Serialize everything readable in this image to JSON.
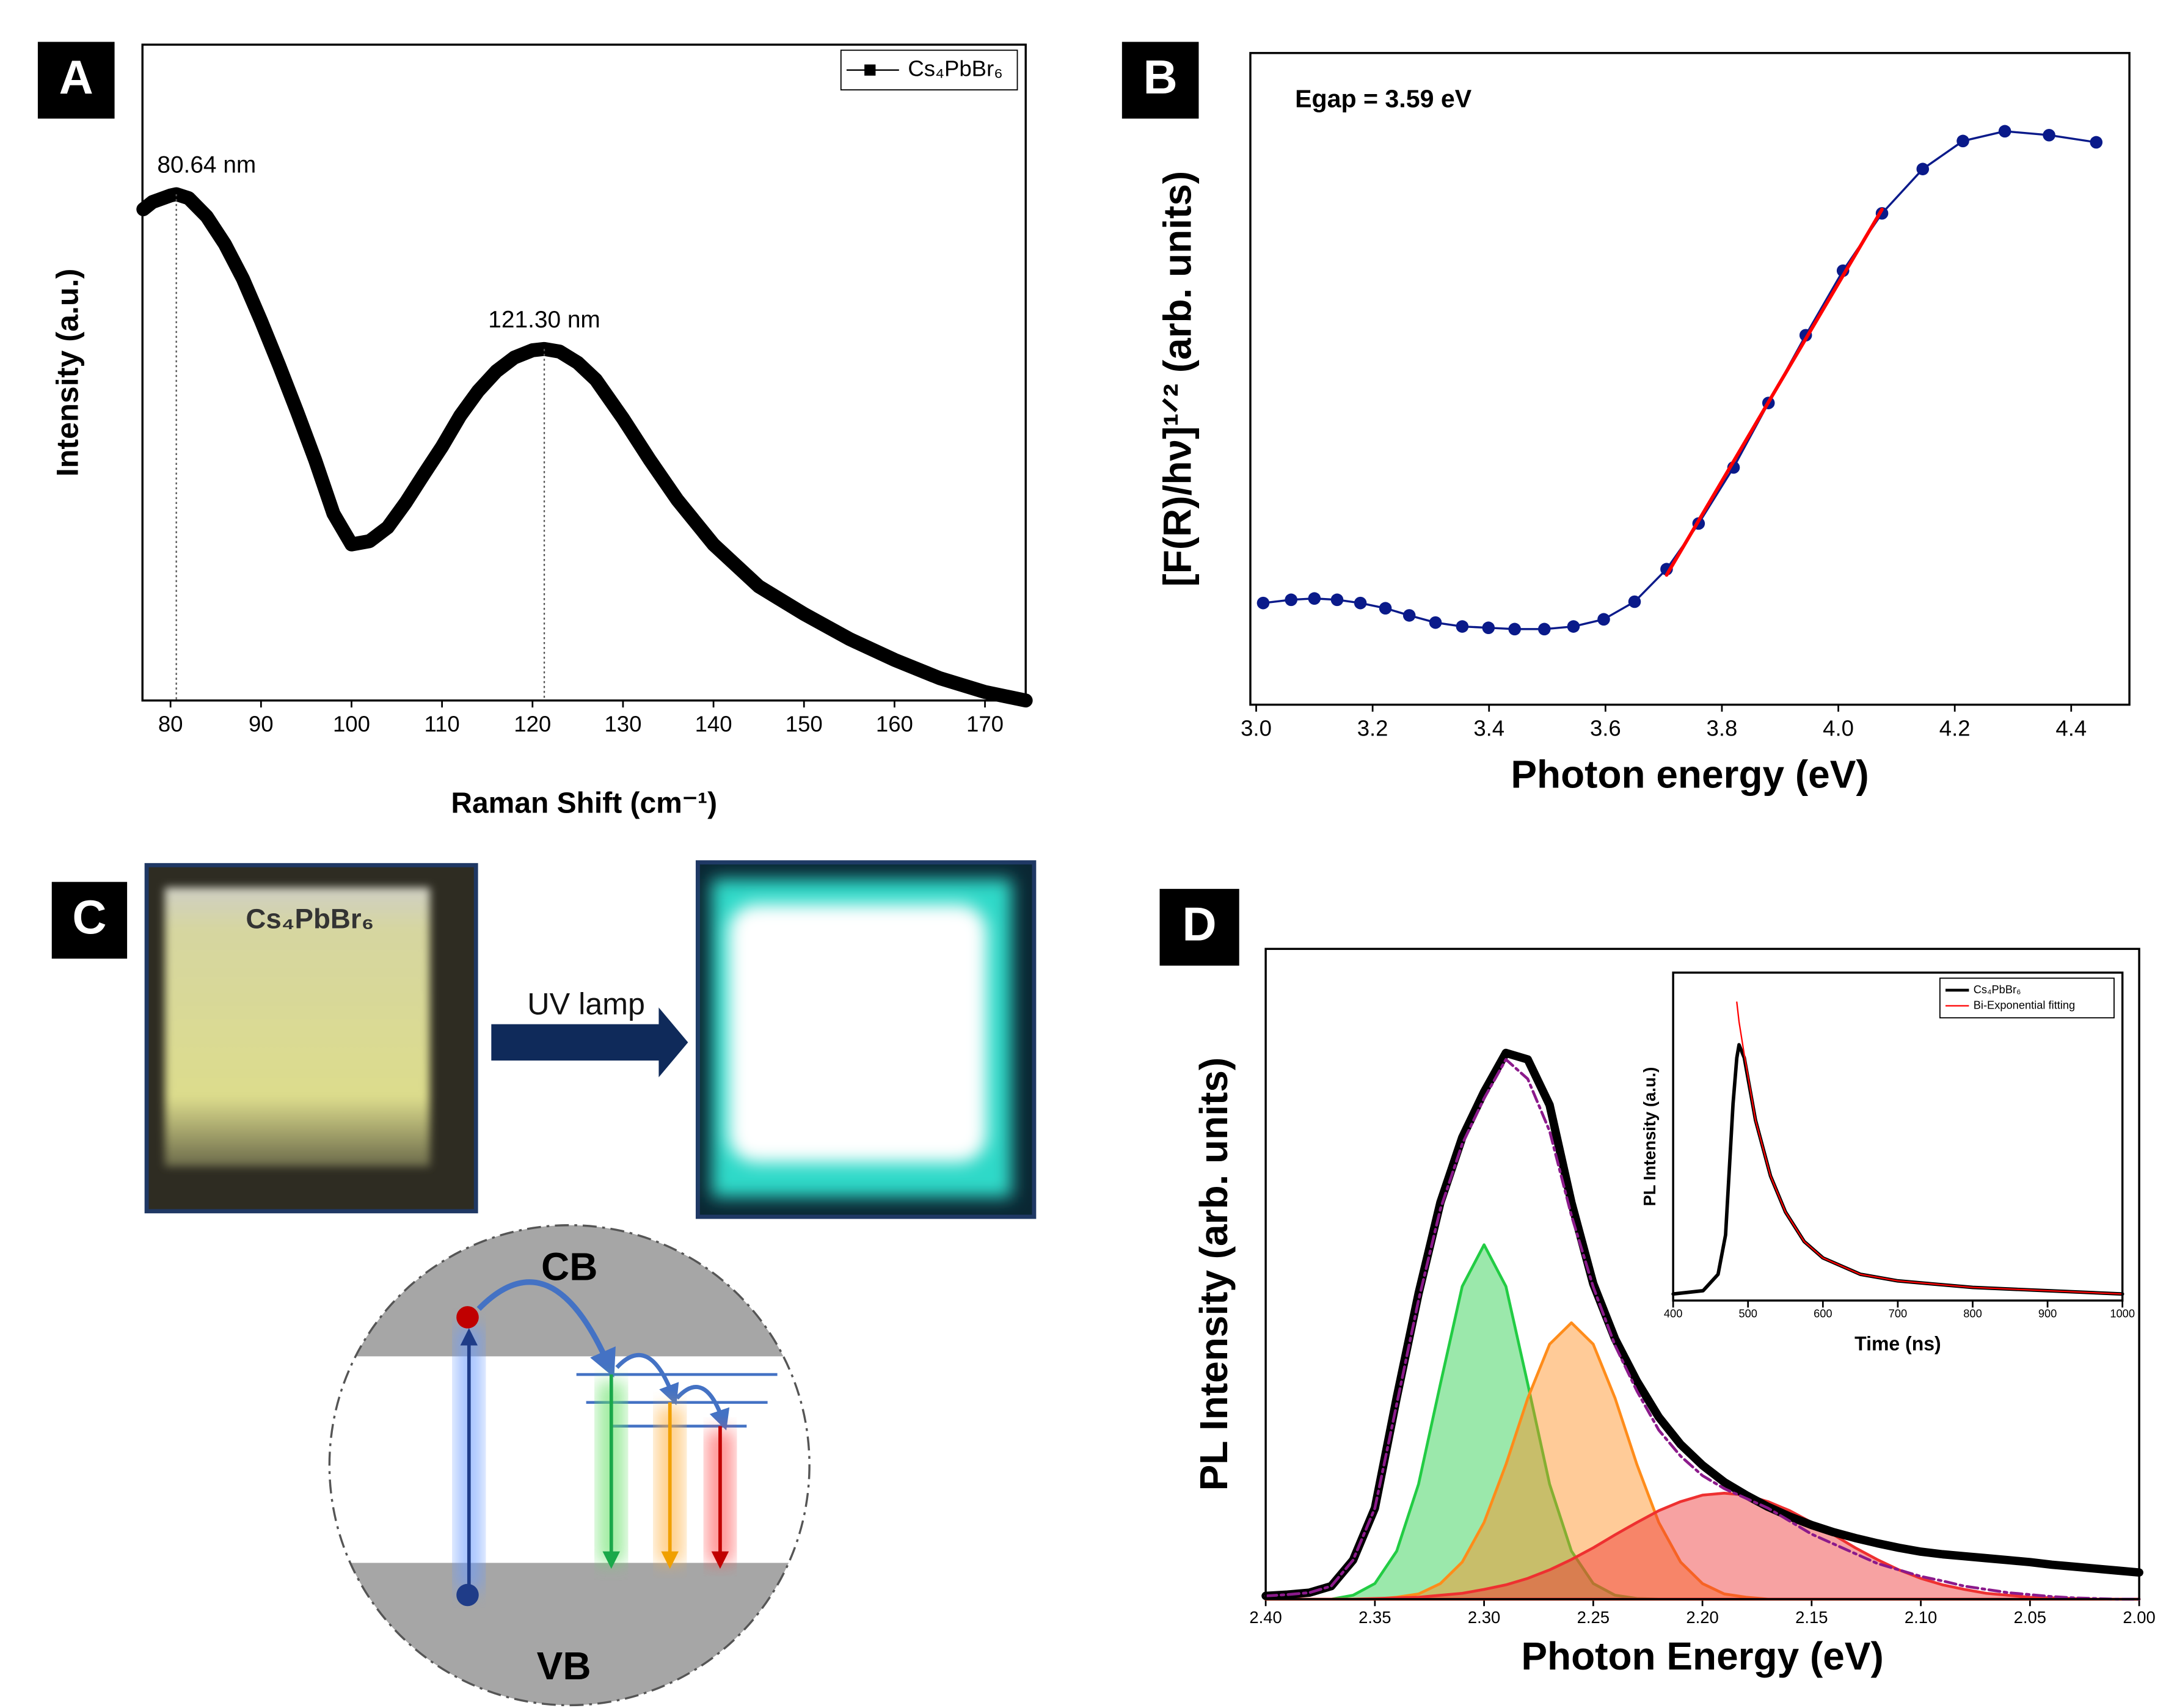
{
  "panel_labels": [
    "A",
    "B",
    "C",
    "D"
  ],
  "panel_c": {
    "sample_label": "Cs₄PbBr₆",
    "arrow_label": "UV lamp",
    "conduction_band": "CB",
    "valence_band": "VB"
  },
  "chart_data": [
    {
      "type": "line",
      "xlabel": "Raman Shift (cm⁻¹)",
      "ylabel": "Intensity (a.u.)",
      "legend": "upper right",
      "xlim": [
        76.9,
        174.5
      ],
      "xticks": [
        80,
        90,
        100,
        110,
        120,
        130,
        140,
        150,
        160,
        170
      ],
      "ylim": [
        0,
        1
      ],
      "x": [
        77,
        78,
        80,
        80.64,
        82,
        84,
        86,
        88,
        90,
        92,
        94,
        96,
        98,
        100,
        102,
        104,
        106,
        108,
        110,
        112,
        114,
        116,
        118,
        120,
        121.3,
        123,
        125,
        127,
        130,
        133,
        136,
        140,
        145,
        150,
        155,
        160,
        165,
        170,
        174.5
      ],
      "series": [
        {
          "name": "Cs₄PbBr₆",
          "color": "#000000",
          "values": [
            0.749,
            0.76,
            0.77,
            0.772,
            0.766,
            0.738,
            0.696,
            0.643,
            0.579,
            0.511,
            0.44,
            0.366,
            0.285,
            0.238,
            0.243,
            0.264,
            0.302,
            0.345,
            0.387,
            0.434,
            0.472,
            0.502,
            0.523,
            0.534,
            0.536,
            0.532,
            0.515,
            0.489,
            0.43,
            0.366,
            0.306,
            0.238,
            0.174,
            0.132,
            0.094,
            0.062,
            0.034,
            0.013,
            0
          ]
        }
      ],
      "annotations": [
        {
          "text": "80.64 nm",
          "x": 80.64
        },
        {
          "text": "121.30 nm",
          "x": 121.3
        }
      ]
    },
    {
      "type": "line",
      "xlabel": "Photon energy (eV)",
      "ylabel": "[F(R)/hν]¹ᐟ² (arb. units)",
      "xlim": [
        2.99,
        4.5
      ],
      "xticks": [
        {
          "value": 3,
          "label": "3.0"
        },
        3.2,
        3.4,
        3.6,
        3.8,
        {
          "value": 4,
          "label": "4.0"
        },
        4.2,
        4.4
      ],
      "ylim": [
        0,
        1
      ],
      "series": [
        {
          "color": "#0a1a8a",
          "markers": true,
          "x": [
            3.012,
            3.06,
            3.1,
            3.139,
            3.179,
            3.222,
            3.263,
            3.308,
            3.354,
            3.399,
            3.444,
            3.495,
            3.545,
            3.597,
            3.65,
            3.705,
            3.76,
            3.82,
            3.88,
            3.944,
            4.008,
            4.075,
            4.145,
            4.214,
            4.286,
            4.362,
            4.443
          ],
          "values": [
            0.156,
            0.161,
            0.163,
            0.161,
            0.156,
            0.148,
            0.137,
            0.126,
            0.12,
            0.118,
            0.116,
            0.116,
            0.12,
            0.131,
            0.158,
            0.208,
            0.278,
            0.364,
            0.463,
            0.567,
            0.666,
            0.754,
            0.822,
            0.865,
            0.88,
            0.874,
            0.863
          ]
        },
        {
          "color": "#ff0000",
          "x": [
            3.705,
            4.075
          ],
          "values": [
            0.199,
            0.76
          ]
        }
      ],
      "annotations": [
        {
          "text": "Egap = 3.59 eV"
        }
      ]
    },
    {
      "type": "line",
      "xlabel": "Photon Energy (eV)",
      "ylabel": "PL Intensity (arb. units)",
      "xlim": [
        2.4,
        2.0
      ],
      "xticks": [
        {
          "value": 2.4,
          "label": "2.40"
        },
        2.35,
        {
          "value": 2.3,
          "label": "2.30"
        },
        2.25,
        {
          "value": 2.2,
          "label": "2.20"
        },
        2.15,
        {
          "value": 2.1,
          "label": "2.10"
        },
        2.05,
        {
          "value": 2.0,
          "label": "2.00"
        }
      ],
      "ylim": [
        0,
        1
      ],
      "x": [
        2.4,
        2.39,
        2.38,
        2.37,
        2.36,
        2.35,
        2.34,
        2.33,
        2.32,
        2.31,
        2.3,
        2.29,
        2.28,
        2.27,
        2.26,
        2.25,
        2.24,
        2.23,
        2.22,
        2.21,
        2.2,
        2.19,
        2.18,
        2.17,
        2.16,
        2.15,
        2.14,
        2.13,
        2.12,
        2.11,
        2.1,
        2.09,
        2.08,
        2.07,
        2.06,
        2.05,
        2.04,
        2.03,
        2.02,
        2.01,
        2.0
      ],
      "series": [
        {
          "color": "#22cc44",
          "fill": true,
          "values": [
            0,
            0,
            0,
            0,
            0.006,
            0.024,
            0.074,
            0.177,
            0.331,
            0.481,
            0.545,
            0.481,
            0.331,
            0.177,
            0.074,
            0.024,
            0.006,
            0.001,
            0,
            0,
            0,
            0,
            0,
            0,
            0,
            0,
            0,
            0,
            0,
            0,
            0,
            0,
            0,
            0,
            0,
            0,
            0,
            0,
            0,
            0,
            0
          ]
        },
        {
          "color": "#ff8c1a",
          "fill": true,
          "values": [
            0,
            0,
            0,
            0,
            0,
            0,
            0.003,
            0.008,
            0.024,
            0.057,
            0.118,
            0.207,
            0.309,
            0.392,
            0.425,
            0.392,
            0.309,
            0.207,
            0.118,
            0.057,
            0.024,
            0.008,
            0.003,
            0,
            0,
            0,
            0,
            0,
            0,
            0,
            0,
            0,
            0,
            0,
            0,
            0,
            0,
            0,
            0,
            0,
            0
          ]
        },
        {
          "color": "#ee3030",
          "fill": true,
          "values": [
            0,
            0,
            0,
            0,
            0,
            0.001,
            0.002,
            0.003,
            0.006,
            0.009,
            0.015,
            0.022,
            0.032,
            0.045,
            0.061,
            0.079,
            0.099,
            0.118,
            0.136,
            0.15,
            0.16,
            0.163,
            0.16,
            0.15,
            0.136,
            0.118,
            0.099,
            0.079,
            0.061,
            0.045,
            0.032,
            0.022,
            0.015,
            0.009,
            0.006,
            0.003,
            0.002,
            0.001,
            0,
            0,
            0
          ]
        },
        {
          "color": "#000000",
          "values": [
            0.005,
            0.007,
            0.01,
            0.02,
            0.06,
            0.14,
            0.31,
            0.47,
            0.61,
            0.71,
            0.78,
            0.84,
            0.83,
            0.76,
            0.61,
            0.485,
            0.4,
            0.335,
            0.28,
            0.238,
            0.206,
            0.18,
            0.16,
            0.142,
            0.127,
            0.114,
            0.103,
            0.094,
            0.086,
            0.079,
            0.073,
            0.069,
            0.066,
            0.063,
            0.06,
            0.057,
            0.053,
            0.05,
            0.047,
            0.044,
            0.041
          ]
        },
        {
          "color": "#8b1a8b",
          "dashed": true,
          "values": [
            0.005,
            0.007,
            0.01,
            0.02,
            0.06,
            0.14,
            0.3,
            0.46,
            0.6,
            0.7,
            0.77,
            0.83,
            0.8,
            0.72,
            0.59,
            0.48,
            0.39,
            0.32,
            0.26,
            0.22,
            0.19,
            0.17,
            0.155,
            0.14,
            0.12,
            0.1,
            0.085,
            0.07,
            0.055,
            0.045,
            0.035,
            0.028,
            0.02,
            0.015,
            0.01,
            0.007,
            0.004,
            0.002,
            0.001,
            0,
            0
          ]
        }
      ]
    },
    {
      "type": "line",
      "xlabel": "Time (ns)",
      "ylabel": "PL Intensity (a.u.)",
      "legend": "upper right",
      "xlim": [
        400,
        1000
      ],
      "xticks": [
        400,
        500,
        600,
        700,
        800,
        900,
        1000
      ],
      "ylim": [
        0,
        1
      ],
      "x": [
        400,
        440,
        460,
        470,
        480,
        485,
        488,
        495,
        510,
        530,
        550,
        575,
        600,
        650,
        700,
        800,
        900,
        1000
      ],
      "series": [
        {
          "name": "Cs₄PbBr₆",
          "color": "#000000",
          "values": [
            0.02,
            0.03,
            0.08,
            0.2,
            0.6,
            0.74,
            0.78,
            0.74,
            0.55,
            0.38,
            0.27,
            0.18,
            0.13,
            0.08,
            0.06,
            0.04,
            0.03,
            0.02
          ]
        },
        {
          "name": "Bi-Exponential fitting",
          "color": "#ff0000",
          "values": [
            null,
            null,
            null,
            null,
            null,
            0.91,
            0.85,
            0.75,
            0.55,
            0.38,
            0.27,
            0.18,
            0.13,
            0.08,
            0.06,
            0.04,
            0.03,
            0.02
          ]
        }
      ]
    }
  ]
}
